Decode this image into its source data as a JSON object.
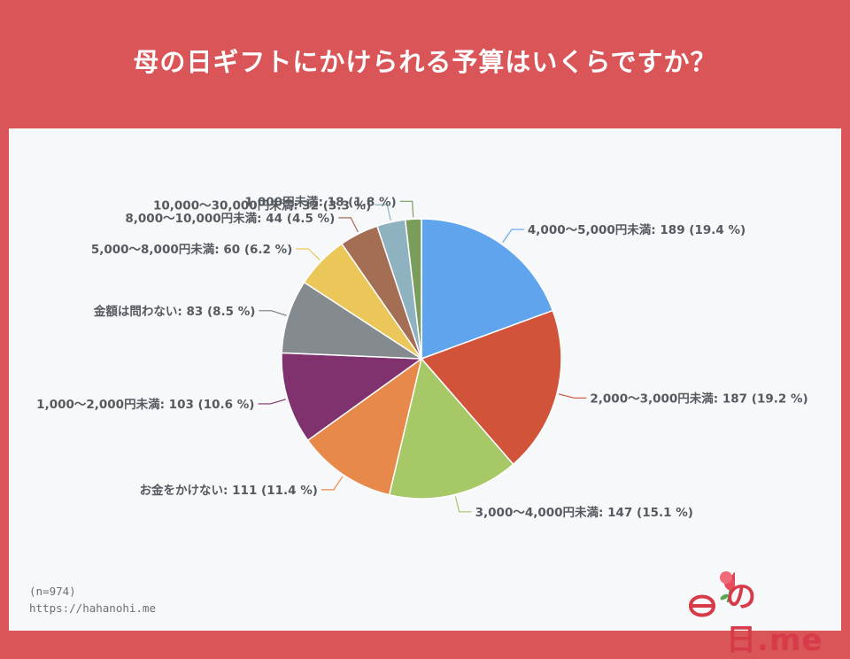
{
  "header": {
    "title": "母の日ギフトにかけられる予算はいくらですか？"
  },
  "footer": {
    "sample": "(n=974)",
    "url": "https://hahanohi.me",
    "logo_text": "の日.me"
  },
  "chart_data": {
    "type": "pie",
    "title": "母の日ギフトにかけられる予算はいくらですか？",
    "slices": [
      {
        "label": "4,000～5,000円未満",
        "value": 189,
        "percent": 19.4,
        "color": "#5fa4ec"
      },
      {
        "label": "2,000～3,000円未満",
        "value": 187,
        "percent": 19.2,
        "color": "#d1543a"
      },
      {
        "label": "3,000～4,000円未満",
        "value": 147,
        "percent": 15.1,
        "color": "#a6c867"
      },
      {
        "label": "お金をかけない",
        "value": 111,
        "percent": 11.4,
        "color": "#e8894c"
      },
      {
        "label": "1,000～2,000円未満",
        "value": 103,
        "percent": 10.6,
        "color": "#80326f"
      },
      {
        "label": "金額は問わない",
        "value": 83,
        "percent": 8.5,
        "color": "#858a8e"
      },
      {
        "label": "5,000～8,000円未満",
        "value": 60,
        "percent": 6.2,
        "color": "#ebc75a"
      },
      {
        "label": "8,000～10,000円未満",
        "value": 44,
        "percent": 4.5,
        "color": "#a46e54"
      },
      {
        "label": "10,000～30,000円未満",
        "value": 32,
        "percent": 3.3,
        "color": "#8fb2c0"
      },
      {
        "label": "1,000円未満",
        "value": 18,
        "percent": 1.8,
        "color": "#7a9d5c"
      }
    ]
  }
}
